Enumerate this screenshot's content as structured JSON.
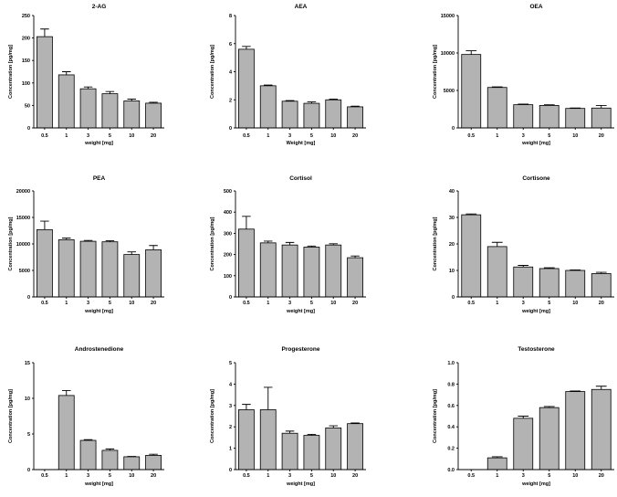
{
  "figure": {
    "bar_color": "#b3b3b3",
    "line_color": "#000000"
  },
  "chart_data": [
    {
      "type": "bar",
      "title": "2-AG",
      "ylabel": "Concentration [pg/mg]",
      "xlabel": "weight [mg]",
      "categories": [
        "0.5",
        "1",
        "3",
        "5",
        "10",
        "20"
      ],
      "values": [
        203,
        118,
        87,
        76,
        60,
        55
      ],
      "errors": [
        17,
        7,
        4,
        5,
        4,
        2
      ],
      "ylim": [
        0,
        250
      ],
      "yticks": [
        0,
        50,
        100,
        150,
        200,
        250
      ],
      "ytick_labels": [
        "0",
        "50",
        "100",
        "150",
        "200",
        "250"
      ]
    },
    {
      "type": "bar",
      "title": "AEA",
      "ylabel": "Concentration [pg/mg]",
      "xlabel": "Weight [mg]",
      "categories": [
        "0.5",
        "1",
        "3",
        "5",
        "10",
        "20"
      ],
      "values": [
        5.6,
        3.0,
        1.9,
        1.75,
        2.0,
        1.5
      ],
      "errors": [
        0.2,
        0.05,
        0.05,
        0.1,
        0.05,
        0.05
      ],
      "ylim": [
        0,
        8
      ],
      "yticks": [
        0,
        2,
        4,
        6,
        8
      ],
      "ytick_labels": [
        "0",
        "2",
        "4",
        "6",
        "8"
      ]
    },
    {
      "type": "bar",
      "title": "OEA",
      "ylabel": "Concentration [pg/mg]",
      "xlabel": "weight [mg]",
      "categories": [
        "0.5",
        "1",
        "3",
        "5",
        "10",
        "20"
      ],
      "values": [
        9800,
        5400,
        3100,
        3000,
        2600,
        2650
      ],
      "errors": [
        500,
        80,
        80,
        80,
        60,
        350
      ],
      "ylim": [
        0,
        15000
      ],
      "yticks": [
        0,
        5000,
        10000,
        15000
      ],
      "ytick_labels": [
        "0",
        "5000",
        "10000",
        "15000"
      ]
    },
    {
      "type": "bar",
      "title": "PEA",
      "ylabel": "Concentration [pg/mg]",
      "xlabel": "weight [mg]",
      "categories": [
        "0.5",
        "1",
        "3",
        "5",
        "10",
        "20"
      ],
      "values": [
        12700,
        10800,
        10500,
        10400,
        8000,
        8900
      ],
      "errors": [
        1600,
        300,
        150,
        200,
        500,
        800
      ],
      "ylim": [
        0,
        20000
      ],
      "yticks": [
        0,
        5000,
        10000,
        15000,
        20000
      ],
      "ytick_labels": [
        "0",
        "5000",
        "10000",
        "15000",
        "20000"
      ]
    },
    {
      "type": "bar",
      "title": "Cortisol",
      "ylabel": "Concentration [pg/mg]",
      "xlabel": "weight [mg]",
      "categories": [
        "0.5",
        "1",
        "3",
        "5",
        "10",
        "20"
      ],
      "values": [
        320,
        255,
        245,
        235,
        245,
        185
      ],
      "errors": [
        60,
        8,
        12,
        5,
        6,
        8
      ],
      "ylim": [
        0,
        500
      ],
      "yticks": [
        0,
        100,
        200,
        300,
        400,
        500
      ],
      "ytick_labels": [
        "0",
        "100",
        "200",
        "300",
        "400",
        "500"
      ]
    },
    {
      "type": "bar",
      "title": "Cortisone",
      "ylabel": "Concentration [pg/mg]",
      "xlabel": "weight [mg]",
      "categories": [
        "0.5",
        "1",
        "3",
        "5",
        "10",
        "20"
      ],
      "values": [
        31,
        19,
        11.3,
        10.7,
        10,
        8.8
      ],
      "errors": [
        0.3,
        1.6,
        0.6,
        0.3,
        0.2,
        0.5
      ],
      "ylim": [
        0,
        40
      ],
      "yticks": [
        0,
        10,
        20,
        30,
        40
      ],
      "ytick_labels": [
        "0",
        "10",
        "20",
        "30",
        "40"
      ]
    },
    {
      "type": "bar",
      "title": "Androstenedione",
      "ylabel": "Concentration [pg/mg]",
      "xlabel": "weight [mg]",
      "categories": [
        "0.5",
        "1",
        "3",
        "5",
        "10",
        "20"
      ],
      "values": [
        0,
        10.4,
        4.1,
        2.7,
        1.8,
        2.0
      ],
      "errors": [
        0,
        0.7,
        0.1,
        0.2,
        0.05,
        0.15
      ],
      "ylim": [
        0,
        15
      ],
      "yticks": [
        0,
        5,
        10,
        15
      ],
      "ytick_labels": [
        "0",
        "5",
        "10",
        "15"
      ]
    },
    {
      "type": "bar",
      "title": "Progesterone",
      "ylabel": "Concentration [pg/mg]",
      "xlabel": "weight [mg]",
      "categories": [
        "0.5",
        "1",
        "3",
        "5",
        "10",
        "20"
      ],
      "values": [
        2.8,
        2.8,
        1.7,
        1.6,
        1.95,
        2.15
      ],
      "errors": [
        0.25,
        1.05,
        0.1,
        0.05,
        0.1,
        0.03
      ],
      "ylim": [
        0,
        5
      ],
      "yticks": [
        0,
        1,
        2,
        3,
        4,
        5
      ],
      "ytick_labels": [
        "0",
        "1",
        "2",
        "3",
        "4",
        "5"
      ]
    },
    {
      "type": "bar",
      "title": "Testosterone",
      "ylabel": "Concentration [pg/mg]",
      "xlabel": "weight [mg]",
      "categories": [
        "0.5",
        "1",
        "3",
        "5",
        "10",
        "20"
      ],
      "values": [
        0,
        0.11,
        0.48,
        0.58,
        0.73,
        0.75
      ],
      "errors": [
        0,
        0.01,
        0.02,
        0.01,
        0.005,
        0.03
      ],
      "ylim": [
        0,
        1.0
      ],
      "yticks": [
        0,
        0.2,
        0.4,
        0.6,
        0.8,
        1.0
      ],
      "ytick_labels": [
        "0.0",
        "0.2",
        "0.4",
        "0.6",
        "0.8",
        "1.0"
      ]
    }
  ]
}
